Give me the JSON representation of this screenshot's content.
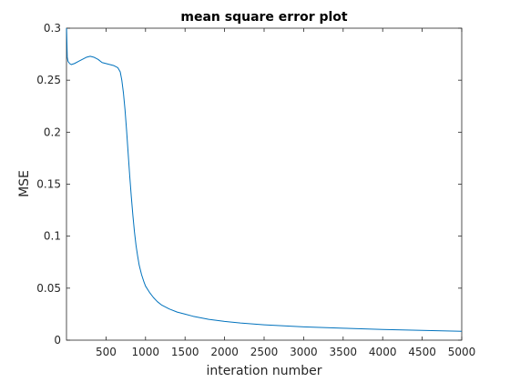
{
  "chart_data": {
    "type": "line",
    "title": "mean square error plot",
    "xlabel": "interation number",
    "ylabel": "MSE",
    "xlim": [
      0,
      5000
    ],
    "ylim": [
      0,
      0.3
    ],
    "xticks": [
      500,
      1000,
      1500,
      2000,
      2500,
      3000,
      3500,
      4000,
      4500,
      5000
    ],
    "xtick_labels": [
      "500",
      "1000",
      "1500",
      "2000",
      "2500",
      "3000",
      "3500",
      "4000",
      "4500",
      "5000"
    ],
    "yticks": [
      0,
      0.05,
      0.1,
      0.15,
      0.2,
      0.25,
      0.3
    ],
    "ytick_labels": [
      "0",
      "0.05",
      "0.1",
      "0.15",
      "0.2",
      "0.25",
      "0.3"
    ],
    "grid": false,
    "line_color": "#0072bd",
    "series": [
      {
        "x": [
          1,
          10,
          20,
          40,
          60,
          100,
          150,
          200,
          250,
          300,
          350,
          400,
          450,
          500,
          550,
          600,
          650,
          680,
          700,
          720,
          740,
          760,
          780,
          800,
          820,
          840,
          860,
          880,
          900,
          920,
          950,
          980,
          1000,
          1050,
          1100,
          1150,
          1200,
          1300,
          1400,
          1500,
          1600,
          1800,
          2000,
          2200,
          2500,
          3000,
          3500,
          4000,
          4500,
          5000
        ],
        "y": [
          0.3,
          0.272,
          0.268,
          0.266,
          0.265,
          0.266,
          0.268,
          0.27,
          0.272,
          0.273,
          0.272,
          0.27,
          0.267,
          0.266,
          0.265,
          0.264,
          0.262,
          0.258,
          0.25,
          0.238,
          0.222,
          0.202,
          0.18,
          0.158,
          0.138,
          0.12,
          0.104,
          0.091,
          0.081,
          0.072,
          0.063,
          0.056,
          0.052,
          0.046,
          0.041,
          0.037,
          0.034,
          0.03,
          0.027,
          0.025,
          0.023,
          0.02,
          0.018,
          0.0165,
          0.0148,
          0.0128,
          0.0115,
          0.0103,
          0.0094,
          0.0085
        ]
      }
    ]
  }
}
